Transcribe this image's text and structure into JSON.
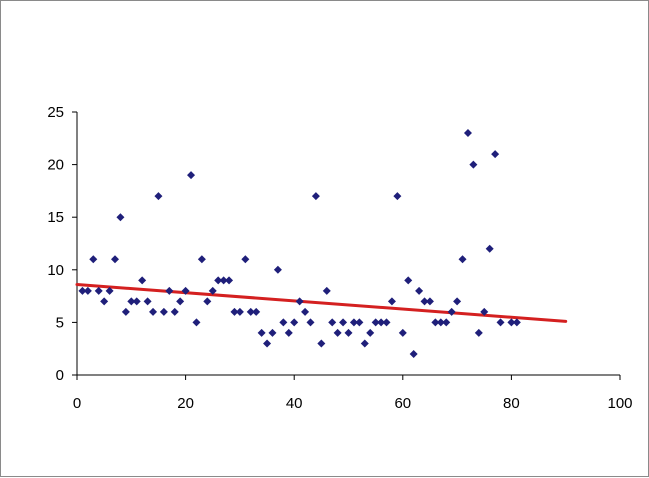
{
  "chart_data": {
    "type": "scatter",
    "title": "",
    "xlabel": "",
    "ylabel": "",
    "xlim": [
      0,
      100
    ],
    "ylim": [
      0,
      25
    ],
    "x_ticks": [
      "0",
      "20",
      "40",
      "60",
      "80",
      "100"
    ],
    "y_ticks": [
      "0",
      "5",
      "10",
      "15",
      "20",
      "25"
    ],
    "grid": false,
    "legend": "none",
    "marker_color": "#1f1f7a",
    "trendline_color": "#d42020",
    "trendline": {
      "x": [
        0,
        90
      ],
      "y": [
        8.6,
        5.1
      ]
    },
    "series": [
      {
        "points": [
          [
            1,
            8
          ],
          [
            2,
            8
          ],
          [
            3,
            11
          ],
          [
            4,
            8
          ],
          [
            5,
            7
          ],
          [
            6,
            8
          ],
          [
            7,
            11
          ],
          [
            8,
            15
          ],
          [
            9,
            6
          ],
          [
            10,
            7
          ],
          [
            11,
            7
          ],
          [
            12,
            9
          ],
          [
            13,
            7
          ],
          [
            14,
            6
          ],
          [
            15,
            17
          ],
          [
            16,
            6
          ],
          [
            17,
            8
          ],
          [
            18,
            6
          ],
          [
            19,
            7
          ],
          [
            20,
            8
          ],
          [
            21,
            19
          ],
          [
            22,
            5
          ],
          [
            23,
            11
          ],
          [
            24,
            7
          ],
          [
            25,
            8
          ],
          [
            26,
            9
          ],
          [
            27,
            9
          ],
          [
            28,
            9
          ],
          [
            29,
            6
          ],
          [
            30,
            6
          ],
          [
            31,
            11
          ],
          [
            32,
            6
          ],
          [
            33,
            6
          ],
          [
            34,
            4
          ],
          [
            35,
            3
          ],
          [
            36,
            4
          ],
          [
            37,
            10
          ],
          [
            38,
            5
          ],
          [
            39,
            4
          ],
          [
            40,
            5
          ],
          [
            41,
            7
          ],
          [
            42,
            6
          ],
          [
            43,
            5
          ],
          [
            44,
            17
          ],
          [
            45,
            3
          ],
          [
            46,
            8
          ],
          [
            47,
            5
          ],
          [
            48,
            4
          ],
          [
            49,
            5
          ],
          [
            50,
            4
          ],
          [
            51,
            5
          ],
          [
            52,
            5
          ],
          [
            53,
            3
          ],
          [
            54,
            4
          ],
          [
            55,
            5
          ],
          [
            56,
            5
          ],
          [
            57,
            5
          ],
          [
            58,
            7
          ],
          [
            59,
            17
          ],
          [
            60,
            4
          ],
          [
            61,
            9
          ],
          [
            62,
            2
          ],
          [
            63,
            8
          ],
          [
            64,
            7
          ],
          [
            65,
            7
          ],
          [
            66,
            5
          ],
          [
            67,
            5
          ],
          [
            68,
            5
          ],
          [
            69,
            6
          ],
          [
            70,
            7
          ],
          [
            71,
            11
          ],
          [
            72,
            23
          ],
          [
            73,
            20
          ],
          [
            74,
            4
          ],
          [
            75,
            6
          ],
          [
            76,
            12
          ],
          [
            77,
            21
          ],
          [
            78,
            5
          ],
          [
            80,
            5
          ],
          [
            81,
            5
          ]
        ]
      }
    ]
  }
}
